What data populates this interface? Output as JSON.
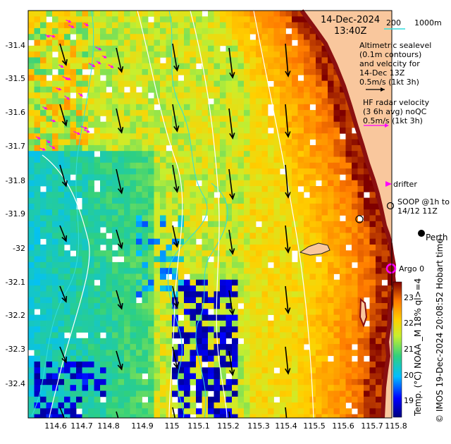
{
  "datetime": {
    "date": "14-Dec-2024",
    "time": "13:40Z"
  },
  "scale_bar": {
    "label": "200",
    "unit_label": "1000m"
  },
  "legend": {
    "altimetry": [
      "Altimetric sealevel",
      "(0.1m contours)",
      "and velocity for",
      "14-Dec 13Z",
      "0.5m/s (1kt 3h)"
    ],
    "hf_radar": [
      "HF radar velocity",
      "(3 6h avg) noQC",
      "0.5m/s (1kt 3h)"
    ],
    "drifter": "drifter",
    "soop": [
      "SOOP @1h to",
      "14/12 11Z"
    ],
    "argo": "Argo 0",
    "place": "Perth"
  },
  "axes": {
    "y_ticks": [
      "-31.4",
      "-31.5",
      "-31.6",
      "-31.7",
      "-31.8",
      "-31.9",
      "-32",
      "-32.1",
      "-32.2",
      "-32.3",
      "-32.4"
    ],
    "x_ticks": [
      "114.6",
      "114.7",
      "114.8",
      "114.9",
      "115",
      "115.1",
      "115.2",
      "115.3",
      "115.4",
      "115.5",
      "115.6",
      "115.7",
      "115.8"
    ]
  },
  "colorbar": {
    "ticks": [
      "23",
      "22",
      "21",
      "20",
      "19"
    ],
    "title": "Temp. (°C) NOAA _M 18% ql>=4",
    "range": [
      18.5,
      23.5
    ]
  },
  "credit": "© IMOS 19-Dec-2024 20:08:52 Hobart time",
  "colors": {
    "land": "#f9c79d",
    "coast": "#8b1010",
    "radar_arrow": "#ff00ff",
    "contour": "#ffffff",
    "isobath": "#33dddd"
  }
}
